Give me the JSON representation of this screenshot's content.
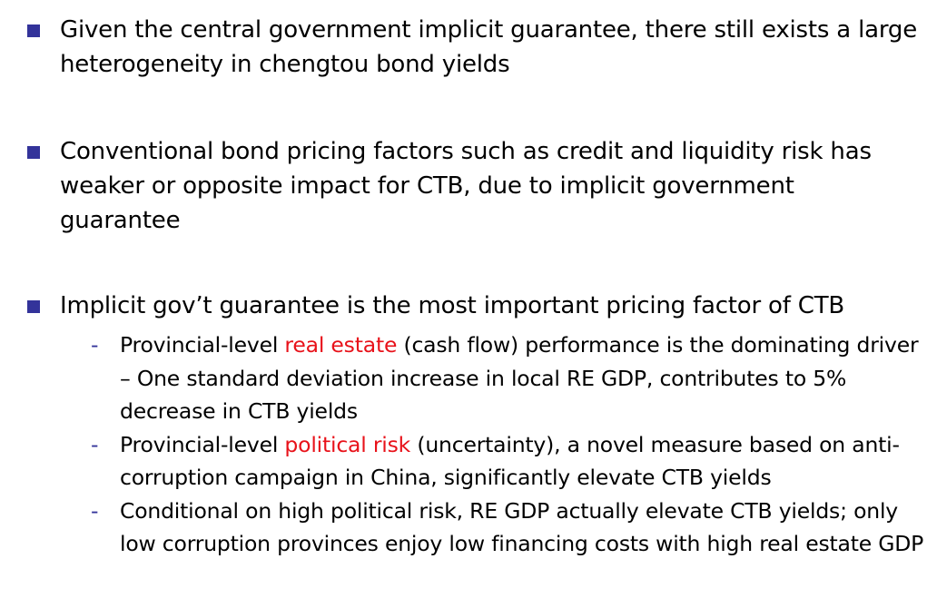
{
  "colors": {
    "bullet_marker": "#33339a",
    "dash": "#33339a",
    "highlight": "#e8121a",
    "text": "#000000"
  },
  "bullets": [
    {
      "text": "Given the central government implicit guarantee, there still exists a large heterogeneity in chengtou bond yields"
    },
    {
      "text": "Conventional bond pricing factors such as credit and liquidity risk has weaker or opposite impact for CTB, due to implicit government guarantee"
    },
    {
      "text": "Implicit gov’t guarantee is the most important pricing factor of CTB",
      "sub_items": [
        {
          "marker": "-",
          "before": "Provincial-level ",
          "highlight": "real estate",
          "after": " (cash flow) performance is the dominating driver – One standard deviation increase in local RE GDP, contributes to 5% decrease in CTB yields"
        },
        {
          "marker": "-",
          "before": "Provincial-level ",
          "highlight": "political risk",
          "after": " (uncertainty), a novel measure based on anti-corruption campaign in China, significantly elevate CTB yields"
        },
        {
          "marker": "-",
          "before": "Conditional on high political risk, RE GDP actually elevate CTB yields; only low corruption provinces enjoy low financing costs with high real estate GDP",
          "highlight": "",
          "after": ""
        }
      ]
    }
  ]
}
